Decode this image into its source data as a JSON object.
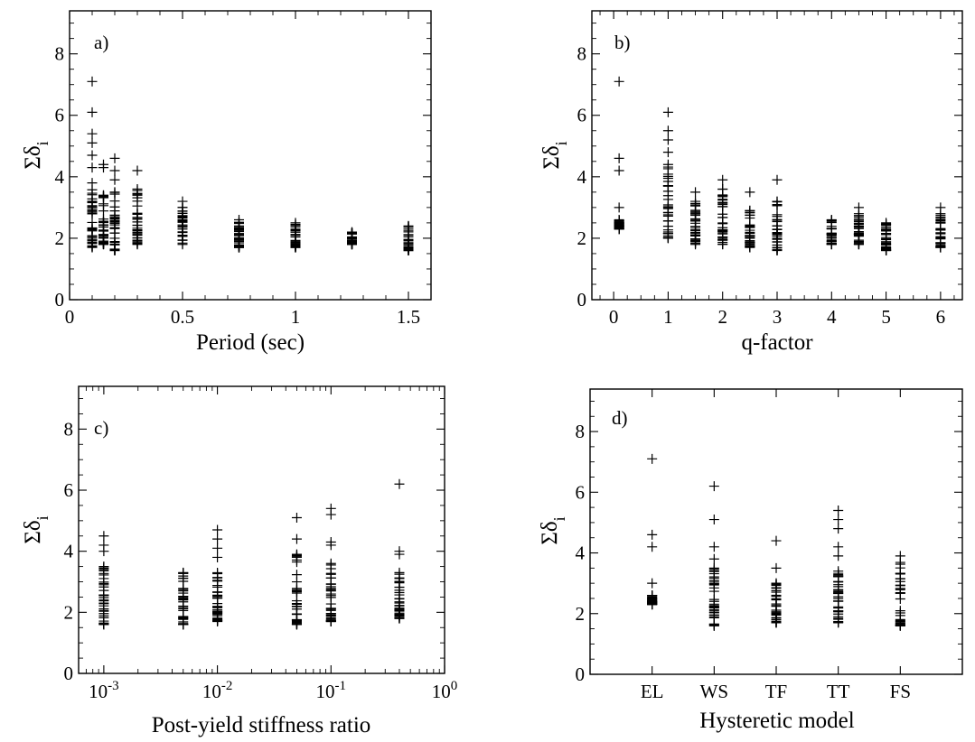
{
  "chart_data": [
    {
      "type": "scatter",
      "panel_label": "a)",
      "xlabel": "Period (sec)",
      "ylabel": "Σδ",
      "ylabel_sub": "i",
      "xlim": [
        0,
        1.6
      ],
      "ylim": [
        0,
        9.4
      ],
      "xticks": [
        0,
        0.5,
        1,
        1.5
      ],
      "xtick_labels": [
        "0",
        "0.5",
        "1",
        "1.5"
      ],
      "yticks": [
        0,
        2,
        4,
        6,
        8
      ],
      "ytick_labels": [
        "0",
        "2",
        "4",
        "6",
        "8"
      ],
      "groups": [
        {
          "x": 0.1,
          "min": 1.7,
          "max": 3.8,
          "outliers": [
            4.3,
            4.7,
            5.1,
            5.4,
            6.1,
            7.1
          ]
        },
        {
          "x": 0.15,
          "min": 1.8,
          "max": 3.4,
          "outliers": [
            4.3,
            4.4
          ]
        },
        {
          "x": 0.2,
          "min": 1.6,
          "max": 3.5,
          "outliers": [
            3.9,
            4.2,
            4.6
          ]
        },
        {
          "x": 0.3,
          "min": 1.8,
          "max": 3.6,
          "outliers": [
            4.2
          ]
        },
        {
          "x": 0.5,
          "min": 1.8,
          "max": 3.0,
          "outliers": [
            3.2
          ]
        },
        {
          "x": 0.75,
          "min": 1.7,
          "max": 2.6,
          "outliers": []
        },
        {
          "x": 1.0,
          "min": 1.7,
          "max": 2.5,
          "outliers": []
        },
        {
          "x": 1.25,
          "min": 1.8,
          "max": 2.2,
          "outliers": []
        },
        {
          "x": 1.5,
          "min": 1.6,
          "max": 2.4,
          "outliers": []
        }
      ]
    },
    {
      "type": "scatter",
      "panel_label": "b)",
      "xlabel": "q-factor",
      "ylabel": "Σδ",
      "ylabel_sub": "i",
      "xlim": [
        -0.4,
        6.4
      ],
      "ylim": [
        0,
        9.4
      ],
      "xticks": [
        0,
        1,
        2,
        3,
        4,
        5,
        6
      ],
      "xtick_labels": [
        "0",
        "1",
        "2",
        "3",
        "4",
        "5",
        "6"
      ],
      "yticks": [
        0,
        2,
        4,
        6,
        8
      ],
      "ytick_labels": [
        "0",
        "2",
        "4",
        "6",
        "8"
      ],
      "groups": [
        {
          "x": 0.1,
          "min": 2.3,
          "max": 2.6,
          "outliers": [
            3.0,
            4.2,
            4.6,
            7.1
          ]
        },
        {
          "x": 1.0,
          "min": 2.0,
          "max": 4.4,
          "outliers": [
            4.8,
            5.2,
            5.5,
            6.1
          ]
        },
        {
          "x": 1.5,
          "min": 1.8,
          "max": 3.2,
          "outliers": [
            3.5
          ]
        },
        {
          "x": 2.0,
          "min": 1.8,
          "max": 3.6,
          "outliers": [
            3.9
          ]
        },
        {
          "x": 2.5,
          "min": 1.7,
          "max": 2.9,
          "outliers": [
            3.5
          ]
        },
        {
          "x": 3.0,
          "min": 1.6,
          "max": 3.2,
          "outliers": [
            3.9
          ]
        },
        {
          "x": 4.0,
          "min": 1.8,
          "max": 2.6,
          "outliers": []
        },
        {
          "x": 4.5,
          "min": 1.8,
          "max": 2.8,
          "outliers": [
            3.0
          ]
        },
        {
          "x": 5.0,
          "min": 1.6,
          "max": 2.5,
          "outliers": []
        },
        {
          "x": 6.0,
          "min": 1.7,
          "max": 2.8,
          "outliers": [
            3.0
          ]
        }
      ]
    },
    {
      "type": "scatter",
      "panel_label": "c)",
      "xlabel": "Post-yield stiffness ratio",
      "ylabel": "Σδ",
      "ylabel_sub": "i",
      "xscale": "log",
      "xlim": [
        0.0006,
        1
      ],
      "ylim": [
        0,
        9.4
      ],
      "xticks": [
        0.001,
        0.01,
        0.1,
        1
      ],
      "xtick_labels": [
        {
          "base": "10",
          "exp": "-3"
        },
        {
          "base": "10",
          "exp": "-2"
        },
        {
          "base": "10",
          "exp": "-1"
        },
        {
          "base": "10",
          "exp": "0"
        }
      ],
      "yticks": [
        0,
        2,
        4,
        6,
        8
      ],
      "ytick_labels": [
        "0",
        "2",
        "4",
        "6",
        "8"
      ],
      "groups": [
        {
          "x": 0.001,
          "min": 1.6,
          "max": 3.5,
          "outliers": [
            4.0,
            4.2,
            4.5
          ]
        },
        {
          "x": 0.005,
          "min": 1.6,
          "max": 3.3,
          "outliers": []
        },
        {
          "x": 0.01,
          "min": 1.7,
          "max": 3.8,
          "outliers": [
            4.1,
            4.4,
            4.7
          ]
        },
        {
          "x": 0.05,
          "min": 1.6,
          "max": 3.9,
          "outliers": [
            4.4,
            5.1
          ]
        },
        {
          "x": 0.1,
          "min": 1.7,
          "max": 3.6,
          "outliers": [
            4.2,
            4.3,
            5.2,
            5.4
          ]
        },
        {
          "x": 0.4,
          "min": 1.8,
          "max": 3.3,
          "outliers": [
            3.9,
            4.0,
            6.2
          ]
        }
      ]
    },
    {
      "type": "scatter",
      "panel_label": "d)",
      "xlabel": "Hysteretic model",
      "ylabel": "Σδ",
      "ylabel_sub": "i",
      "xlim": [
        0,
        6
      ],
      "ylim": [
        0,
        9.4
      ],
      "categories": [
        "EL",
        "WS",
        "TF",
        "TT",
        "FS"
      ],
      "yticks": [
        0,
        2,
        4,
        6,
        8
      ],
      "ytick_labels": [
        "0",
        "2",
        "4",
        "6",
        "8"
      ],
      "groups": [
        {
          "x": 1,
          "min": 2.3,
          "max": 2.6,
          "outliers": [
            3.0,
            4.2,
            4.6,
            7.1
          ]
        },
        {
          "x": 2,
          "min": 1.6,
          "max": 3.5,
          "outliers": [
            3.8,
            4.2,
            5.1,
            6.2
          ]
        },
        {
          "x": 3,
          "min": 1.7,
          "max": 3.0,
          "outliers": [
            3.5,
            4.4
          ]
        },
        {
          "x": 4,
          "min": 1.7,
          "max": 3.4,
          "outliers": [
            3.9,
            4.2,
            4.8,
            5.1,
            5.4
          ]
        },
        {
          "x": 5,
          "min": 1.6,
          "max": 3.9,
          "outliers": []
        }
      ]
    }
  ]
}
